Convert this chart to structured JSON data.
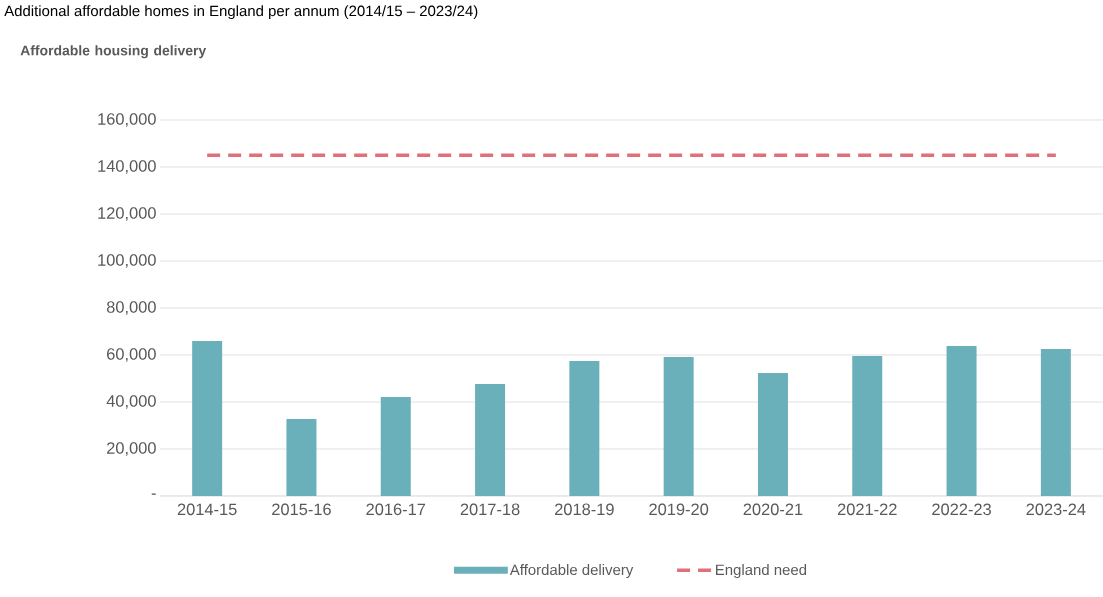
{
  "chart_data": {
    "type": "bar",
    "title": "Additional affordable homes in England per annum (2014/15 – 2023/24)",
    "ylabel": "Affordable housing delivery",
    "categories": [
      "2014-15",
      "2015-16",
      "2016-17",
      "2017-18",
      "2018-19",
      "2019-20",
      "2020-21",
      "2021-22",
      "2022-23",
      "2023-24"
    ],
    "series": [
      {
        "name": "Affordable delivery",
        "color": "#6ab0ba",
        "values": [
          66000,
          32800,
          42100,
          47700,
          57400,
          59100,
          52300,
          59600,
          63800,
          62500
        ]
      },
      {
        "name": "England need",
        "type": "line",
        "line_style": "dashed",
        "color": "#e0707c",
        "values": [
          145000,
          145000,
          145000,
          145000,
          145000,
          145000,
          145000,
          145000,
          145000,
          145000
        ]
      }
    ],
    "ylim": [
      0,
      160000
    ],
    "yticks": [
      {
        "value": 0,
        "label": "-"
      },
      {
        "value": 20000,
        "label": "20,000"
      },
      {
        "value": 40000,
        "label": "40,000"
      },
      {
        "value": 60000,
        "label": "60,000"
      },
      {
        "value": 80000,
        "label": "80,000"
      },
      {
        "value": 100000,
        "label": "100,000"
      },
      {
        "value": 120000,
        "label": "120,000"
      },
      {
        "value": 140000,
        "label": "140,000"
      },
      {
        "value": 160000,
        "label": "160,000"
      }
    ],
    "grid": "y",
    "legend": "bottom"
  }
}
